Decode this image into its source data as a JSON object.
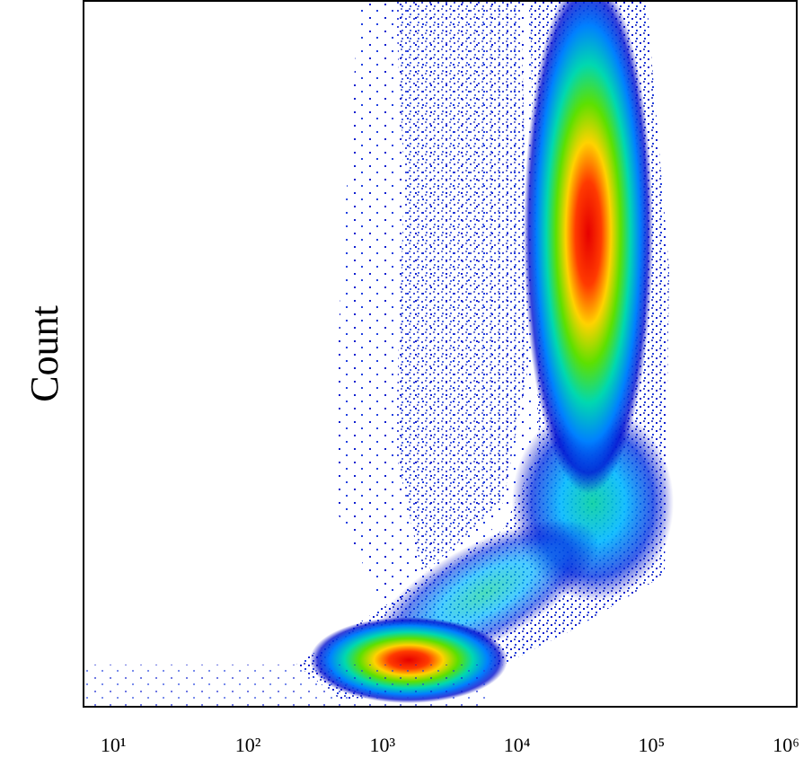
{
  "chart_data": {
    "type": "density",
    "y_label": "Count",
    "xscale": "log",
    "xlim": [
      6,
      1200000
    ],
    "xticks": [
      {
        "value": 10,
        "label": "10¹"
      },
      {
        "value": 100,
        "label": "10²"
      },
      {
        "value": 1000,
        "label": "10³"
      },
      {
        "value": 10000,
        "label": "10⁴"
      },
      {
        "value": 100000,
        "label": "10⁵"
      },
      {
        "value": 1000000,
        "label": "10⁶"
      }
    ]
  }
}
